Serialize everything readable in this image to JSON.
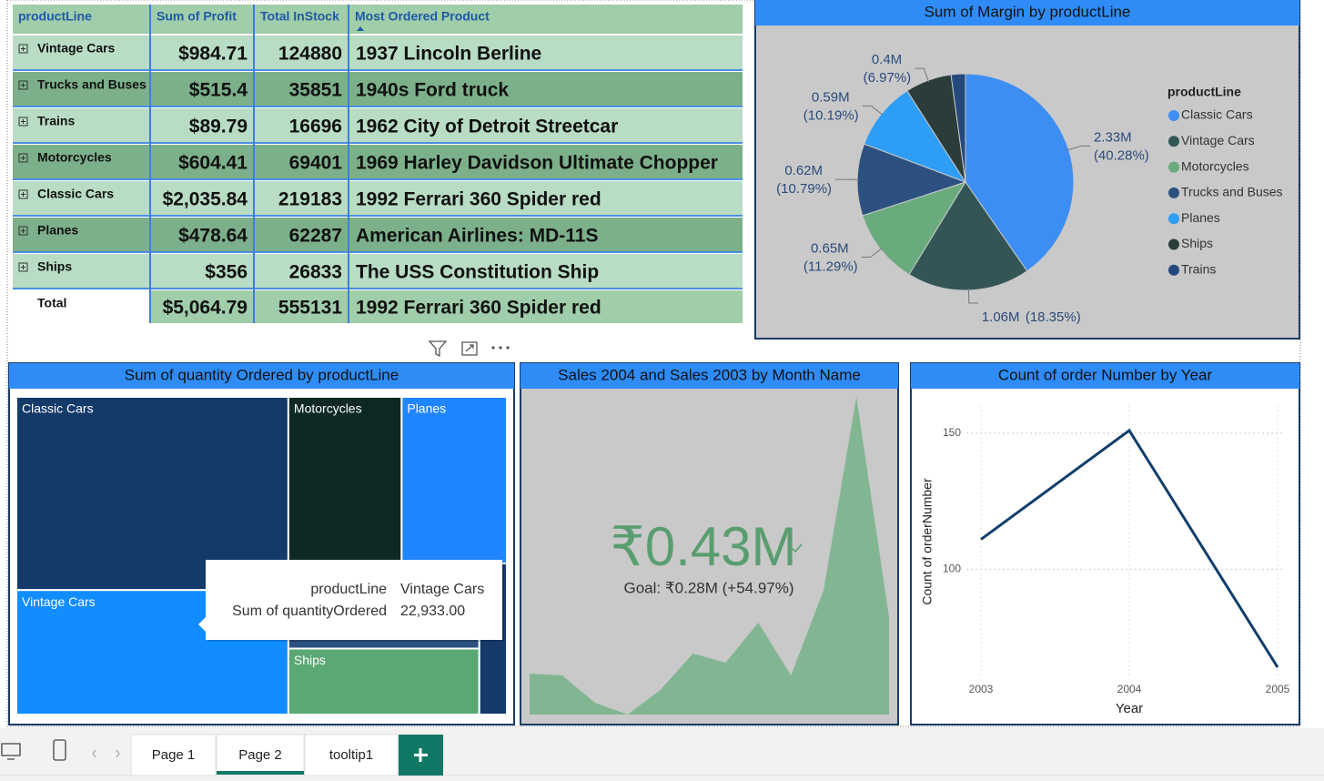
{
  "table": {
    "columns": [
      "productLine",
      "Sum of Profit",
      "Total InStock",
      "Most Ordered Product"
    ],
    "rows": [
      [
        "Vintage Cars",
        "$984.71",
        "124880",
        "1937 Lincoln Berline"
      ],
      [
        "Trucks and Buses",
        "$515.4",
        "35851",
        "1940s Ford truck"
      ],
      [
        "Trains",
        "$89.79",
        "16696",
        "1962 City of Detroit Streetcar"
      ],
      [
        "Motorcycles",
        "$604.41",
        "69401",
        "1969 Harley Davidson Ultimate Chopper"
      ],
      [
        "Classic Cars",
        "$2,035.84",
        "219183",
        "1992 Ferrari 360 Spider red"
      ],
      [
        "Planes",
        "$478.64",
        "62287",
        "American Airlines: MD-11S"
      ],
      [
        "Ships",
        "$356",
        "26833",
        "The USS Constitution Ship"
      ]
    ],
    "total": [
      "Total",
      "$5,064.79",
      "555131",
      "1992 Ferrari 360 Spider red"
    ]
  },
  "chart_data": [
    {
      "type": "pie",
      "title": "Sum of Margin by productLine",
      "legend_title": "productLine",
      "categories": [
        "Classic Cars",
        "Vintage Cars",
        "Motorcycles",
        "Trucks and Buses",
        "Planes",
        "Ships",
        "Trains"
      ],
      "values": [
        2330000,
        1060000,
        650000,
        620000,
        590000,
        400000,
        123000
      ],
      "value_labels": [
        "2.33M",
        "1.06M",
        "0.65M",
        "0.62M",
        "0.59M",
        "0.4M",
        null
      ],
      "percents": [
        40.28,
        18.35,
        11.29,
        10.79,
        10.19,
        6.97,
        2.13
      ],
      "percent_labels": [
        "(40.28%)",
        "(18.35%)",
        "(11.29%)",
        "(10.79%)",
        "(10.19%)",
        "(6.97%)",
        null
      ],
      "colors": [
        "#3c8ef2",
        "#335555",
        "#6aab7e",
        "#2c5180",
        "#2e9df5",
        "#2a3d3b",
        "#24497c"
      ]
    },
    {
      "type": "treemap",
      "title": "Sum of quantity Ordered by productLine",
      "categories": [
        "Classic Cars",
        "Vintage Cars",
        "Motorcycles",
        "Planes",
        null,
        "Ships",
        null
      ],
      "values": [
        35582,
        22933,
        12778,
        11872,
        11001,
        8532,
        2818
      ],
      "colors": [
        "#143a6a",
        "#118dff",
        "#0e2824",
        "#1f86ff",
        "#2c5180",
        "#5aa873",
        "#143a6a"
      ],
      "tooltip": [
        [
          "productLine",
          "Vintage Cars"
        ],
        [
          "Sum of quantityOrdered",
          "22,933.00"
        ]
      ]
    },
    {
      "type": "area",
      "title": "Sales 2004 and Sales 2003 by Month Name",
      "kpi": "₹0.43M",
      "goal": "Goal: ₹0.28M (+54.97%)",
      "values": [
        45,
        43,
        13,
        0,
        27,
        67,
        57,
        101,
        43,
        137,
        349,
        107
      ],
      "color": "#82b693"
    },
    {
      "type": "line",
      "title": "Count of order Number by Year",
      "x": [
        2003,
        2004,
        2005
      ],
      "values": [
        111,
        151,
        64
      ],
      "xlim": [
        2003,
        2005
      ],
      "xticks": [
        2003,
        2004,
        2005
      ],
      "ylim": [
        60,
        157
      ],
      "yticks": [
        100,
        150
      ],
      "xlabel": "Year",
      "ylabel": "Count of orderNumber",
      "color": "#123e6b",
      "grid": true
    }
  ],
  "tabs": [
    "Page 1",
    "Page 2",
    "tooltip1"
  ],
  "active_tab": 1
}
